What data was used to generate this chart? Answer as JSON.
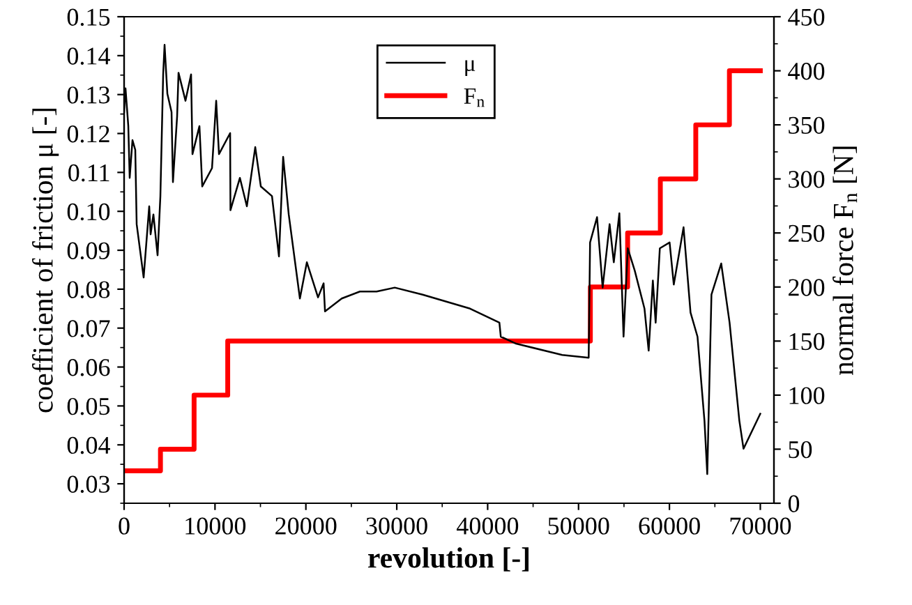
{
  "chart_data": {
    "type": "line",
    "xlabel": "revolution [-]",
    "ylabel": "coefficient of friction μ [-]",
    "y2label": "normal force F$_{n}$ [N]",
    "xlim": [
      0,
      71500
    ],
    "xticks": [
      0,
      10000,
      20000,
      30000,
      40000,
      50000,
      60000,
      70000
    ],
    "ylim": [
      0.025,
      0.15
    ],
    "yticks": [
      {
        "value": 0.03,
        "label": "0.03"
      },
      {
        "value": 0.04,
        "label": "0.04"
      },
      {
        "value": 0.05,
        "label": "0.05"
      },
      {
        "value": 0.06,
        "label": "0.06"
      },
      {
        "value": 0.07,
        "label": "0.07"
      },
      {
        "value": 0.08,
        "label": "0.08"
      },
      {
        "value": 0.09,
        "label": "0.09"
      },
      {
        "value": 0.1,
        "label": "0.10"
      },
      {
        "value": 0.11,
        "label": "0.11"
      },
      {
        "value": 0.12,
        "label": "0.12"
      },
      {
        "value": 0.13,
        "label": "0.13"
      },
      {
        "value": 0.14,
        "label": "0.14"
      },
      {
        "value": 0.15,
        "label": "0.15"
      }
    ],
    "y2lim": [
      0,
      450
    ],
    "y2ticks": [
      0,
      50,
      100,
      150,
      200,
      250,
      300,
      350,
      400,
      450
    ],
    "grid": false,
    "legend": "top",
    "marker": "none",
    "line_style": "solid",
    "series": [
      {
        "name": "μ",
        "color": "#000000",
        "axis": "y",
        "x": [
          0,
          154,
          461,
          614,
          921,
          1228,
          1382,
          2149,
          2763,
          2917,
          3224,
          3684,
          3991,
          4298,
          4452,
          4759,
          5219,
          5373,
          5833,
          5987,
          6754,
          7368,
          7522,
          8289,
          8596,
          9671,
          10131,
          10438,
          11666,
          11700,
          12741,
          13508,
          14429,
          15043,
          16271,
          17039,
          17499,
          18113,
          19341,
          20109,
          21337,
          21951,
          22104,
          23946,
          25942,
          27784,
          29779,
          32849,
          38068,
          41292,
          41445,
          43134,
          48199,
          51116,
          51269,
          52037,
          52651,
          53418,
          53879,
          54493,
          54953,
          55414,
          56181,
          57256,
          57716,
          58177,
          58484,
          58944,
          60019,
          60479,
          61554,
          62321,
          63089,
          63856,
          64163,
          64624,
          65698,
          66619,
          67693,
          68154,
          69996
        ],
        "values": [
          0.1255,
          0.1316,
          0.1219,
          0.1086,
          0.1183,
          0.1158,
          0.0967,
          0.083,
          0.1013,
          0.0941,
          0.0992,
          0.0887,
          0.1039,
          0.1352,
          0.1428,
          0.1302,
          0.1255,
          0.1075,
          0.1244,
          0.1356,
          0.1284,
          0.1352,
          0.1147,
          0.1219,
          0.1064,
          0.1111,
          0.1284,
          0.1147,
          0.1201,
          0.1003,
          0.1086,
          0.1013,
          0.1165,
          0.1064,
          0.1039,
          0.0884,
          0.114,
          0.0992,
          0.0776,
          0.0869,
          0.0779,
          0.0815,
          0.0743,
          0.0776,
          0.0794,
          0.0794,
          0.0804,
          0.0786,
          0.075,
          0.0714,
          0.0678,
          0.066,
          0.0631,
          0.0624,
          0.092,
          0.0985,
          0.0804,
          0.0967,
          0.0869,
          0.0995,
          0.0678,
          0.0905,
          0.0848,
          0.075,
          0.0642,
          0.0822,
          0.0714,
          0.0905,
          0.092,
          0.0812,
          0.0959,
          0.074,
          0.0678,
          0.0462,
          0.0325,
          0.0786,
          0.0866,
          0.0714,
          0.0462,
          0.039,
          0.048
        ]
      },
      {
        "name": "F$_{n}$",
        "color": "#ff0000",
        "type": "step",
        "axis": "y2",
        "x": [
          0,
          4000,
          7700,
          11400,
          51300,
          55400,
          59000,
          62900,
          66600,
          70000
        ],
        "values": [
          30,
          50,
          100,
          150,
          200,
          250,
          300,
          350,
          400,
          400
        ]
      }
    ]
  }
}
